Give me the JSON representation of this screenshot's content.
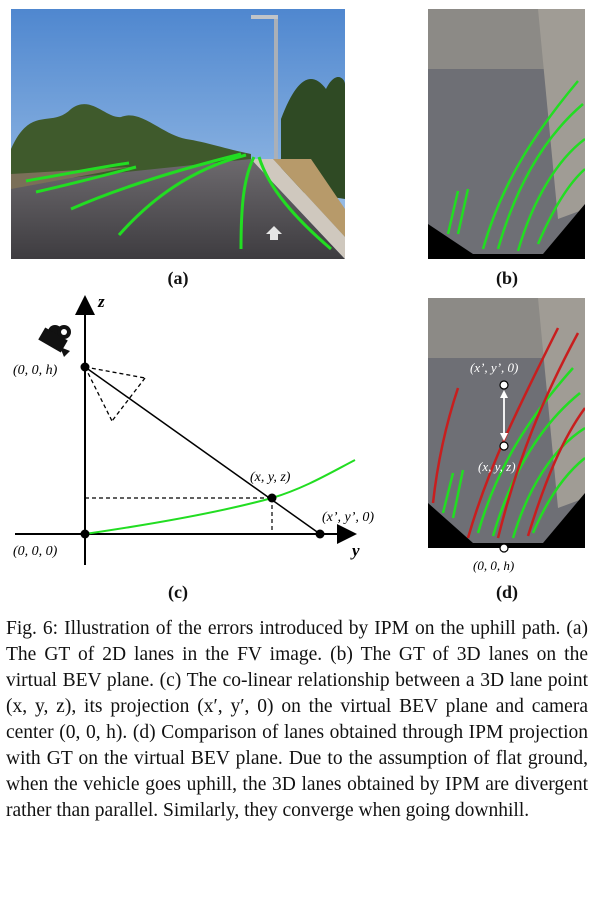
{
  "subfigures": {
    "a": {
      "label": "(a)"
    },
    "b": {
      "label": "(b)"
    },
    "c": {
      "label": "(c)"
    },
    "d": {
      "label": "(d)"
    }
  },
  "diagram_c": {
    "axis_z": "z",
    "axis_y": "y",
    "camera_point": "(0, 0, h)",
    "origin": "(0, 0, 0)",
    "lane_point": "(x, y, z)",
    "projected_point": "(x’, y’, 0)"
  },
  "panel_d": {
    "projected_point": "(x’, y’, 0)",
    "lane_point": "(x, y, z)",
    "camera_point": "(0, 0, h)"
  },
  "colors": {
    "gt_lane": "#22dd22",
    "ipm_lane": "#c81e1e",
    "sky": "#5a8fd0"
  },
  "caption": {
    "lead": "Fig. 6: ",
    "text": "Illustration of the errors introduced by IPM on the uphill path. (a) The GT of 2D lanes in the FV image. (b) The GT of 3D lanes on the virtual BEV plane. (c) The co-linear relationship between a 3D lane point (x, y, z), its projection (x′, y′, 0) on the virtual BEV plane and camera center (0, 0, h). (d) Comparison of lanes obtained through IPM projection with GT on the virtual BEV plane. Due to the assumption of flat ground, when the vehicle goes uphill, the 3D lanes obtained by IPM are divergent rather than parallel. Similarly, they converge when going downhill."
  }
}
